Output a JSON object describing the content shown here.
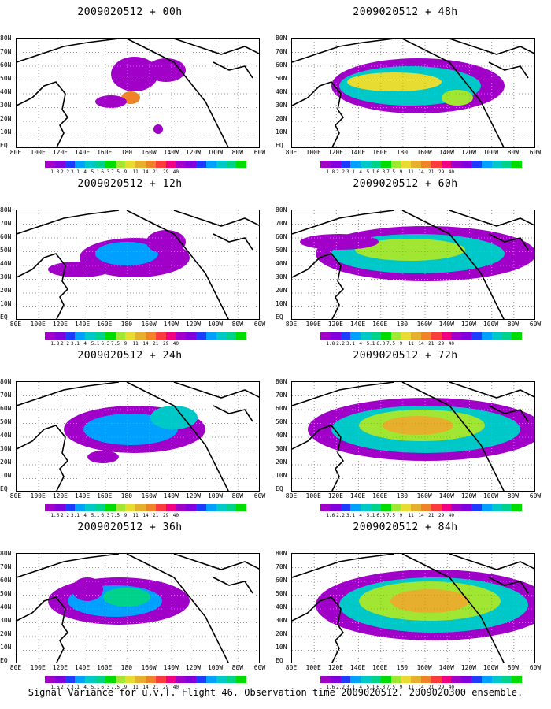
{
  "colorbar": {
    "labels": [
      "1.8",
      "2.2",
      "3.1",
      "4",
      "5.1",
      "6.3",
      "7.5",
      "9",
      "11",
      "14",
      "21",
      "29",
      "40"
    ],
    "labels_alt": [
      "1.6",
      "2.2",
      "3.1",
      "4",
      "5.1",
      "6.3",
      "7.5",
      "9",
      "11",
      "14",
      "21",
      "29",
      "40"
    ],
    "colors": [
      "#a000c8",
      "#8200dc",
      "#1e3cff",
      "#00a0ff",
      "#00c8c8",
      "#00d28c",
      "#00dc00",
      "#a0e632",
      "#e6dc32",
      "#e6af2d",
      "#f08228",
      "#fa3c3c",
      "#f00082"
    ]
  },
  "lon_labels": [
    "80E",
    "100E",
    "120E",
    "140E",
    "160E",
    "180",
    "160W",
    "140W",
    "120W",
    "100W",
    "80W",
    "60W"
  ],
  "lat_labels": [
    "80N",
    "70N",
    "60N",
    "50N",
    "40N",
    "30N",
    "20N",
    "10N",
    "EQ"
  ],
  "panels": [
    {
      "title": "2009020512 + 00h",
      "col": 0,
      "row": 0,
      "colorbar": "labels"
    },
    {
      "title": "2009020512 + 48h",
      "col": 1,
      "row": 0,
      "colorbar": "labels"
    },
    {
      "title": "2009020512 + 12h",
      "col": 0,
      "row": 1,
      "colorbar": "labels"
    },
    {
      "title": "2009020512 + 60h",
      "col": 1,
      "row": 1,
      "colorbar": "labels"
    },
    {
      "title": "2009020512 + 24h",
      "col": 0,
      "row": 2,
      "colorbar": "labels_alt"
    },
    {
      "title": "2009020512 + 72h",
      "col": 1,
      "row": 2,
      "colorbar": "labels_alt"
    },
    {
      "title": "2009020512 + 36h",
      "col": 0,
      "row": 3,
      "colorbar": "labels_alt"
    },
    {
      "title": "2009020512 + 84h",
      "col": 1,
      "row": 3,
      "colorbar": "labels_alt"
    }
  ],
  "footer": "Signal Variance for u,v,T. Flight 46. Observation time 2009020512. 2009020300 ensemble."
}
